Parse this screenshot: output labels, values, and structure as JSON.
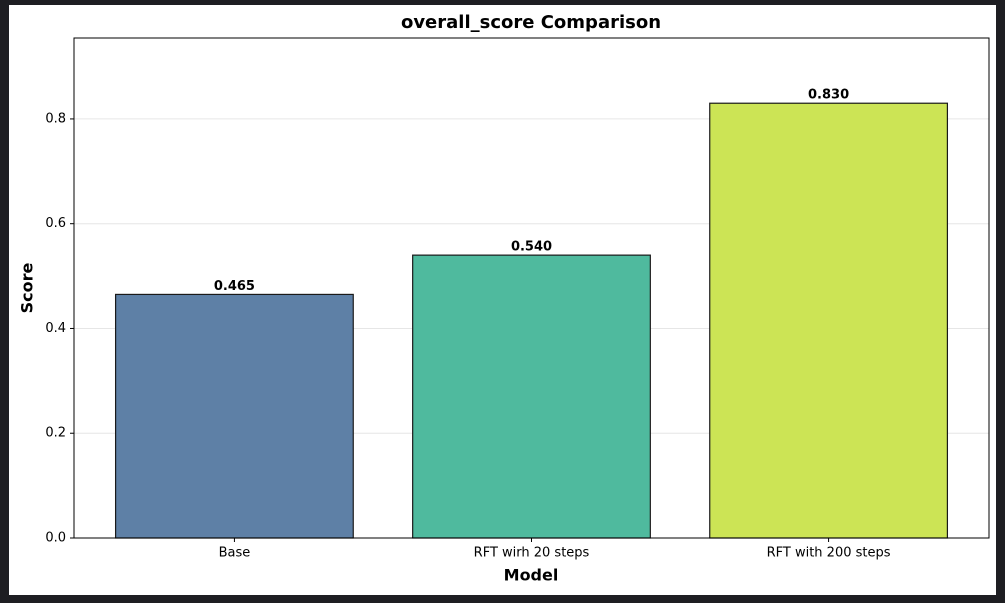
{
  "chart_data": {
    "type": "bar",
    "title": "overall_score Comparison",
    "x_label": "Model",
    "y_label": "Score",
    "categories": [
      "Base",
      "RFT wirh 20 steps",
      "RFT with 200 steps"
    ],
    "values": [
      0.465,
      0.54,
      0.83
    ],
    "value_labels": [
      "0.465",
      "0.540",
      "0.830"
    ],
    "colors": [
      "#5e80a6",
      "#4fba9e",
      "#cce455"
    ],
    "ylim": [
      0,
      0.9545
    ],
    "yticks": [
      {
        "value": 0,
        "label": "0.0"
      },
      0.2,
      0.4,
      0.6,
      0.8
    ],
    "grid": true
  }
}
